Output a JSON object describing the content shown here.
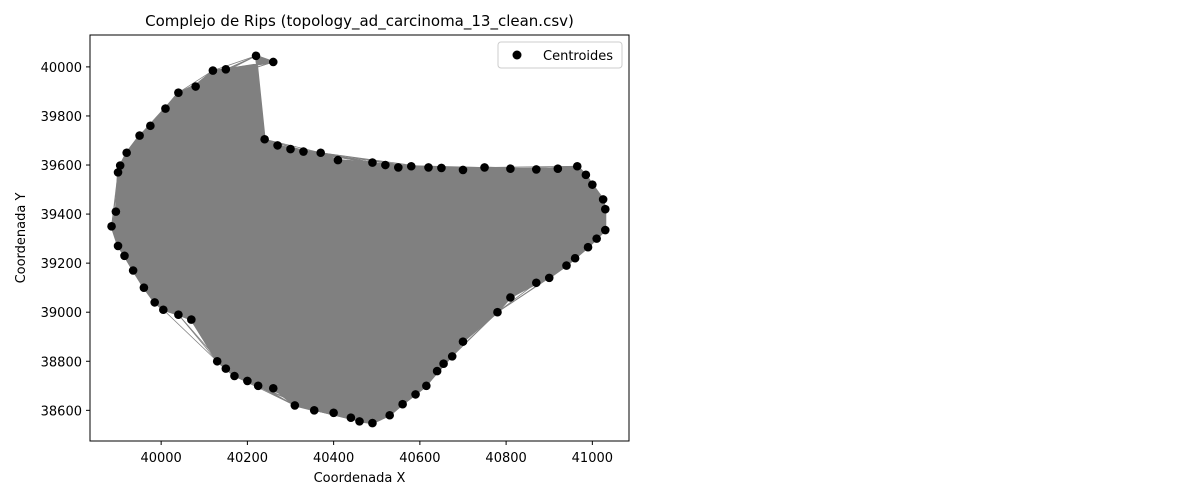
{
  "chart_data": {
    "type": "scatter",
    "title": "Complejo de Rips (topology_ad_carcinoma_13_clean.csv)",
    "xlabel": "Coordenada X",
    "ylabel": "Coordenada Y",
    "xlim": [
      39835,
      41085
    ],
    "ylim": [
      38475,
      40130
    ],
    "xticks": [
      40000,
      40200,
      40400,
      40600,
      40800,
      41000
    ],
    "yticks": [
      38600,
      38800,
      39000,
      39200,
      39400,
      39600,
      39800,
      40000
    ],
    "grid": false,
    "legend": {
      "placement": "top-right",
      "entries": [
        "Centroides"
      ]
    },
    "colors": {
      "points": "#000000",
      "edges": "#808080",
      "axes": "#000000",
      "legend_border": "#cccccc"
    },
    "series": [
      {
        "name": "Centroides",
        "points": [
          [
            40220,
            40045
          ],
          [
            40260,
            40020
          ],
          [
            40150,
            39990
          ],
          [
            40120,
            39985
          ],
          [
            40080,
            39920
          ],
          [
            40040,
            39895
          ],
          [
            40010,
            39830
          ],
          [
            39975,
            39760
          ],
          [
            39950,
            39720
          ],
          [
            39920,
            39650
          ],
          [
            39905,
            39598
          ],
          [
            39900,
            39570
          ],
          [
            39895,
            39410
          ],
          [
            39885,
            39350
          ],
          [
            39900,
            39270
          ],
          [
            39915,
            39230
          ],
          [
            39935,
            39170
          ],
          [
            39960,
            39100
          ],
          [
            39985,
            39040
          ],
          [
            40005,
            39010
          ],
          [
            40040,
            38990
          ],
          [
            40070,
            38970
          ],
          [
            40130,
            38800
          ],
          [
            40150,
            38770
          ],
          [
            40170,
            38740
          ],
          [
            40200,
            38720
          ],
          [
            40225,
            38700
          ],
          [
            40260,
            38690
          ],
          [
            40310,
            38620
          ],
          [
            40355,
            38600
          ],
          [
            40400,
            38590
          ],
          [
            40440,
            38570
          ],
          [
            40460,
            38555
          ],
          [
            40490,
            38548
          ],
          [
            40530,
            38580
          ],
          [
            40560,
            38625
          ],
          [
            40590,
            38665
          ],
          [
            40615,
            38700
          ],
          [
            40640,
            38760
          ],
          [
            40655,
            38790
          ],
          [
            40675,
            38820
          ],
          [
            40700,
            38880
          ],
          [
            40780,
            39000
          ],
          [
            40810,
            39060
          ],
          [
            40870,
            39120
          ],
          [
            40900,
            39140
          ],
          [
            40940,
            39190
          ],
          [
            40960,
            39220
          ],
          [
            40990,
            39265
          ],
          [
            41010,
            39300
          ],
          [
            41030,
            39335
          ],
          [
            41030,
            39420
          ],
          [
            41025,
            39460
          ],
          [
            41000,
            39520
          ],
          [
            40985,
            39560
          ],
          [
            40965,
            39595
          ],
          [
            40920,
            39585
          ],
          [
            40870,
            39582
          ],
          [
            40810,
            39585
          ],
          [
            40750,
            39590
          ],
          [
            40700,
            39580
          ],
          [
            40650,
            39588
          ],
          [
            40620,
            39590
          ],
          [
            40580,
            39595
          ],
          [
            40550,
            39590
          ],
          [
            40520,
            39600
          ],
          [
            40490,
            39610
          ],
          [
            40410,
            39620
          ],
          [
            40370,
            39650
          ],
          [
            40330,
            39655
          ],
          [
            40300,
            39665
          ],
          [
            40270,
            39680
          ],
          [
            40240,
            39705
          ]
        ]
      }
    ]
  }
}
